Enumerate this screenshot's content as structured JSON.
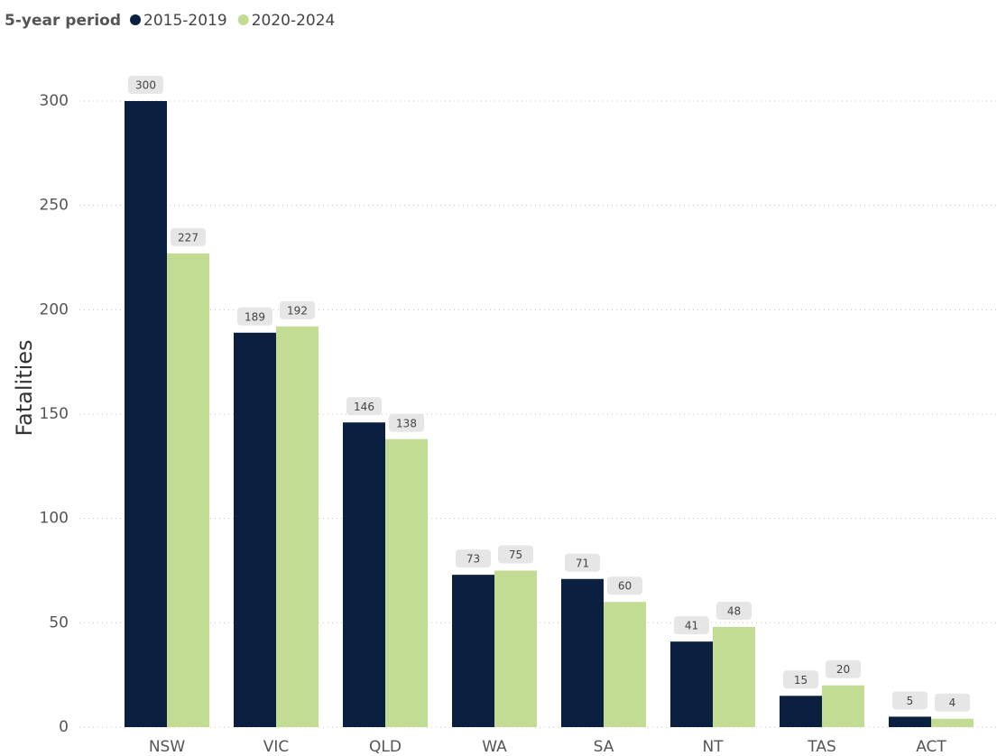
{
  "chart_data": {
    "type": "bar",
    "legend_title": "5-year period",
    "y_label": "Fatalities",
    "categories": [
      "NSW",
      "VIC",
      "QLD",
      "WA",
      "SA",
      "NT",
      "TAS",
      "ACT"
    ],
    "series": [
      {
        "name": "2015-2019",
        "color": "#0b1f40",
        "values": [
          300,
          189,
          146,
          73,
          71,
          41,
          15,
          5
        ]
      },
      {
        "name": "2020-2024",
        "color": "#c3dc93",
        "values": [
          227,
          192,
          138,
          75,
          60,
          48,
          20,
          4
        ]
      }
    ],
    "ylim": [
      0,
      300
    ],
    "yticks": [
      0,
      50,
      100,
      150,
      200,
      250,
      300
    ],
    "grid": true,
    "legend": "top-left"
  }
}
